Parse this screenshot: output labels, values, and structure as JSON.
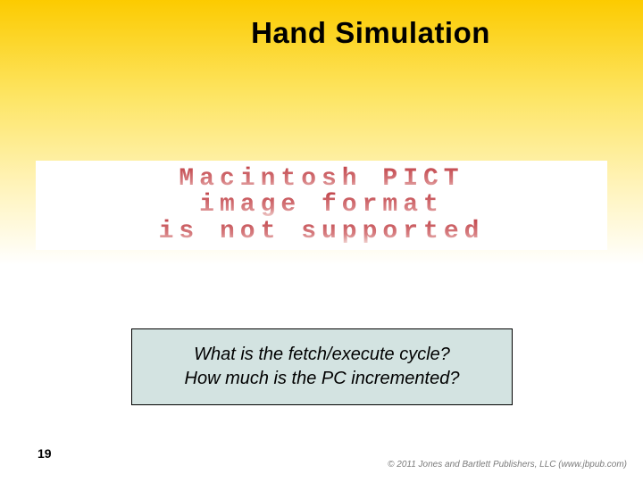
{
  "slide": {
    "title": "Hand Simulation",
    "page_number": "19",
    "copyright": "© 2011 Jones and Bartlett Publishers, LLC (www.jbpub.com)"
  },
  "pict_error": {
    "line1": "Macintosh PICT",
    "line2": "image format",
    "line3": "is not supported",
    "text_color_top": "#c1444a",
    "text_color_bottom": "#f4dcd9",
    "background_color": "#ffffff"
  },
  "question_box": {
    "line1": "What is the fetch/execute cycle?",
    "line2": "How much is the PC incremented?",
    "background_color": "#d3e3e1",
    "border_color": "#000000",
    "font_style": "italic",
    "font_size_pt": 15
  },
  "background": {
    "gradient_top": "#fccb00",
    "gradient_bottom": "#ffffff"
  }
}
